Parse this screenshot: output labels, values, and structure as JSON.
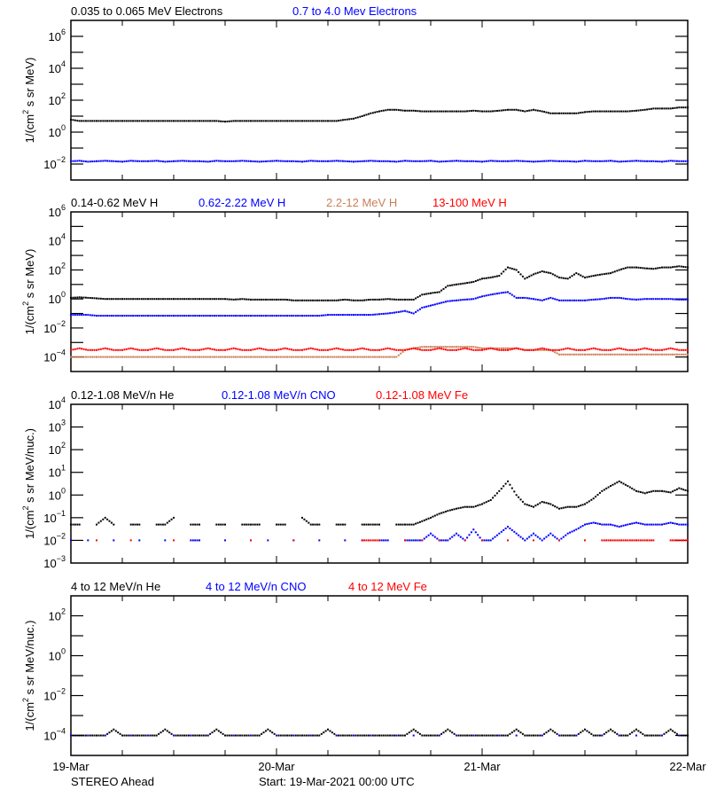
{
  "footer": {
    "spacecraft": "STEREO Ahead",
    "start": "Start: 19-Mar-2021 00:00 UTC"
  },
  "x_axis": {
    "tick_labels": [
      "19-Mar",
      "20-Mar",
      "21-Mar",
      "22-Mar"
    ],
    "range": [
      "2021-03-19 00:00 UTC",
      "2021-03-22 00:00 UTC"
    ],
    "sample_interval": "1 hour",
    "minor_tick_interval": "6 hours"
  },
  "chart_data": [
    {
      "type": "scatter",
      "ylabel": "1/(cm² s sr MeV)",
      "ylabel_parts": [
        "1/(cm",
        "2",
        " s sr MeV)"
      ],
      "yscale": "log",
      "ylim": [
        0.001,
        10000000
      ],
      "ytick_exponents": [
        6,
        4,
        2,
        0,
        -2
      ],
      "series": [
        {
          "name": "0.035 to 0.065 MeV Electrons",
          "color": "#000000",
          "values": [
            6,
            5,
            5,
            5,
            5,
            5,
            5,
            5,
            5,
            5,
            5,
            5,
            5,
            5,
            5,
            5,
            5,
            5,
            4.5,
            5,
            5,
            5,
            5,
            5,
            5,
            5,
            5,
            5,
            5,
            5,
            5,
            5,
            6,
            7,
            10,
            15,
            20,
            25,
            25,
            22,
            22,
            20,
            20,
            20,
            20,
            20,
            20,
            22,
            20,
            20,
            22,
            25,
            25,
            20,
            25,
            20,
            15,
            15,
            15,
            15,
            18,
            20,
            20,
            20,
            20,
            20,
            22,
            25,
            30,
            30,
            30,
            35,
            35
          ]
        },
        {
          "name": "0.7 to 4.0 Mev Electrons",
          "color": "#0000ff",
          "values": [
            0.015,
            0.016,
            0.014,
            0.015,
            0.016,
            0.015,
            0.014,
            0.016,
            0.015,
            0.015,
            0.016,
            0.014,
            0.015,
            0.016,
            0.015,
            0.015,
            0.014,
            0.016,
            0.015,
            0.015,
            0.016,
            0.015,
            0.014,
            0.015,
            0.016,
            0.015,
            0.015,
            0.014,
            0.016,
            0.015,
            0.015,
            0.016,
            0.015,
            0.014,
            0.015,
            0.016,
            0.015,
            0.015,
            0.014,
            0.016,
            0.015,
            0.015,
            0.016,
            0.014,
            0.015,
            0.016,
            0.015,
            0.015,
            0.014,
            0.016,
            0.015,
            0.015,
            0.016,
            0.015,
            0.014,
            0.015,
            0.016,
            0.015,
            0.015,
            0.014,
            0.016,
            0.015,
            0.015,
            0.016,
            0.014,
            0.015,
            0.016,
            0.015,
            0.015,
            0.014,
            0.016,
            0.015,
            0.015
          ]
        }
      ]
    },
    {
      "type": "scatter",
      "ylabel": "1/(cm² s sr MeV)",
      "ylabel_parts": [
        "1/(cm",
        "2",
        " s sr MeV)"
      ],
      "yscale": "log",
      "ylim": [
        1e-05,
        1000000
      ],
      "ytick_exponents": [
        6,
        4,
        2,
        0,
        -2,
        -4
      ],
      "series": [
        {
          "name": "0.14-0.62 MeV H",
          "color": "#000000",
          "values": [
            1.2,
            1.3,
            1.2,
            1.1,
            1,
            1,
            1,
            1,
            1,
            1,
            1,
            1,
            1,
            1,
            1,
            1,
            1,
            1,
            1,
            0.9,
            1,
            0.9,
            0.9,
            0.9,
            0.9,
            0.9,
            0.8,
            0.8,
            0.8,
            0.8,
            0.8,
            0.8,
            0.9,
            0.8,
            0.8,
            0.9,
            0.9,
            1,
            0.9,
            0.9,
            0.9,
            2,
            2.5,
            3,
            8,
            10,
            12,
            15,
            25,
            30,
            40,
            150,
            100,
            25,
            50,
            80,
            60,
            30,
            25,
            60,
            30,
            40,
            50,
            60,
            100,
            150,
            150,
            130,
            120,
            150,
            150,
            180,
            150
          ]
        },
        {
          "name": "0.62-2.22 MeV H",
          "color": "#0000ff",
          "values": [
            0.08,
            0.08,
            0.08,
            0.07,
            0.07,
            0.07,
            0.07,
            0.07,
            0.07,
            0.07,
            0.07,
            0.07,
            0.07,
            0.07,
            0.07,
            0.07,
            0.07,
            0.07,
            0.07,
            0.07,
            0.07,
            0.07,
            0.07,
            0.07,
            0.07,
            0.07,
            0.07,
            0.07,
            0.07,
            0.07,
            0.08,
            0.08,
            0.08,
            0.08,
            0.08,
            0.08,
            0.09,
            0.1,
            0.12,
            0.15,
            0.1,
            0.25,
            0.35,
            0.5,
            0.7,
            0.8,
            0.9,
            1,
            1.5,
            2,
            2.5,
            3,
            1.2,
            1.2,
            1,
            0.8,
            1.2,
            0.8,
            0.8,
            0.8,
            0.8,
            0.9,
            1,
            1.2,
            1.2,
            1,
            0.9,
            1,
            1,
            1,
            1,
            0.9,
            0.9
          ]
        },
        {
          "name": "2.2-12 MeV H",
          "color": "#c8805a",
          "values": [
            0.0001,
            0.0001,
            0.0001,
            0.0001,
            0.0001,
            0.0001,
            0.0001,
            0.0001,
            0.0001,
            0.0001,
            0.0001,
            0.0001,
            0.0001,
            0.0001,
            0.0001,
            0.0001,
            0.0001,
            0.0001,
            0.0001,
            0.0001,
            0.0001,
            0.0001,
            0.0001,
            0.0001,
            0.0001,
            0.0001,
            0.0001,
            0.0001,
            0.0001,
            0.0001,
            0.0001,
            0.0001,
            0.0001,
            0.0001,
            0.0001,
            0.0001,
            0.0001,
            0.0001,
            0.0001,
            0.0003,
            0.0004,
            0.0005,
            0.0005,
            0.0005,
            0.0005,
            0.0005,
            0.0005,
            0.0005,
            0.0004,
            0.0004,
            0.0004,
            0.0004,
            0.0004,
            0.0003,
            0.0003,
            0.0003,
            0.0003,
            0.00015,
            0.00015,
            0.00015,
            0.00015,
            0.00015,
            0.00015,
            0.00015,
            0.00015,
            0.00015,
            0.00015,
            0.00015,
            0.00015,
            0.00015,
            0.00015,
            0.00015,
            0.00015
          ]
        },
        {
          "name": "13-100 MeV H",
          "color": "#ff0000",
          "values": [
            0.0003,
            0.0004,
            0.0003,
            0.0003,
            0.0004,
            0.0003,
            0.0003,
            0.0004,
            0.0003,
            0.0003,
            0.0004,
            0.0003,
            0.0003,
            0.0004,
            0.0003,
            0.0003,
            0.0004,
            0.0003,
            0.0003,
            0.0004,
            0.0003,
            0.0003,
            0.0004,
            0.0003,
            0.0003,
            0.0004,
            0.0003,
            0.0003,
            0.0004,
            0.0003,
            0.0003,
            0.0004,
            0.0003,
            0.0003,
            0.0004,
            0.0003,
            0.0003,
            0.0004,
            0.0003,
            0.0003,
            0.0004,
            0.0003,
            0.0003,
            0.0004,
            0.0003,
            0.0003,
            0.0004,
            0.0003,
            0.0003,
            0.0004,
            0.0003,
            0.0003,
            0.0004,
            0.0003,
            0.0003,
            0.0004,
            0.0003,
            0.0003,
            0.0004,
            0.0003,
            0.0003,
            0.0004,
            0.0003,
            0.0003,
            0.0004,
            0.0003,
            0.0003,
            0.0004,
            0.0003,
            0.0003,
            0.0004,
            0.0003,
            0.0003
          ]
        }
      ]
    },
    {
      "type": "scatter",
      "ylabel": "1/(cm² s sr MeV/nuc.)",
      "ylabel_parts": [
        "1/(cm",
        "2",
        " s sr MeV/nuc.)"
      ],
      "yscale": "log",
      "ylim": [
        0.001,
        10000
      ],
      "ytick_exponents": [
        4,
        3,
        2,
        1,
        0,
        -1,
        -2,
        -3
      ],
      "series": [
        {
          "name": "0.12-1.08 MeV/n He",
          "color": "#000000",
          "values": [
            0.05,
            0.05,
            null,
            0.05,
            0.1,
            0.05,
            null,
            0.05,
            0.05,
            null,
            0.05,
            0.05,
            0.1,
            null,
            0.05,
            0.05,
            null,
            0.05,
            0.05,
            null,
            0.05,
            0.05,
            0.05,
            null,
            0.05,
            0.05,
            null,
            0.1,
            0.05,
            0.05,
            null,
            0.05,
            0.05,
            null,
            0.05,
            0.05,
            0.05,
            null,
            0.05,
            0.05,
            0.05,
            0.07,
            0.1,
            0.15,
            0.2,
            0.25,
            0.3,
            0.3,
            0.4,
            0.6,
            1.5,
            4,
            1,
            0.4,
            0.3,
            0.5,
            0.4,
            0.25,
            0.3,
            0.3,
            0.4,
            0.7,
            1.5,
            2.5,
            4,
            2.5,
            1.5,
            1.2,
            1.5,
            1.5,
            1.3,
            2,
            1.5
          ]
        },
        {
          "name": "0.12-1.08 MeV/n CNO",
          "color": "#0000ff",
          "values": [
            0.01,
            null,
            0.01,
            null,
            null,
            0.01,
            null,
            null,
            0.01,
            null,
            null,
            0.01,
            null,
            null,
            0.01,
            0.01,
            null,
            null,
            0.01,
            null,
            null,
            0.01,
            null,
            0.01,
            null,
            null,
            0.01,
            null,
            null,
            0.01,
            null,
            null,
            0.01,
            null,
            0.01,
            null,
            0.01,
            0.01,
            null,
            0.01,
            0.01,
            0.01,
            0.02,
            0.01,
            0.01,
            0.02,
            0.01,
            0.03,
            0.01,
            0.01,
            0.02,
            0.04,
            0.02,
            0.01,
            0.02,
            0.01,
            0.02,
            0.01,
            0.02,
            0.03,
            0.05,
            0.06,
            0.05,
            0.05,
            0.04,
            0.05,
            0.06,
            0.05,
            0.05,
            0.05,
            0.06,
            0.05,
            0.05
          ]
        },
        {
          "name": "0.12-1.08 MeV Fe",
          "color": "#ff0000",
          "values": [
            null,
            null,
            null,
            0.01,
            null,
            null,
            null,
            0.01,
            null,
            null,
            null,
            null,
            0.01,
            null,
            null,
            null,
            null,
            null,
            null,
            null,
            null,
            0.01,
            null,
            null,
            null,
            null,
            0.01,
            null,
            null,
            null,
            null,
            null,
            null,
            null,
            0.01,
            0.01,
            0.01,
            null,
            null,
            0.01,
            null,
            0.01,
            null,
            0.01,
            null,
            null,
            0.01,
            null,
            0.01,
            null,
            null,
            0.01,
            null,
            null,
            0.01,
            null,
            null,
            0.01,
            null,
            null,
            0.01,
            null,
            0.01,
            0.01,
            0.01,
            0.01,
            0.01,
            0.01,
            0.01,
            null,
            0.01,
            0.01,
            0.01
          ]
        }
      ]
    },
    {
      "type": "scatter",
      "ylabel": "1/(cm² s sr MeV/nuc.)",
      "ylabel_parts": [
        "1/(cm",
        "2",
        " s sr MeV/nuc.)"
      ],
      "yscale": "log",
      "ylim": [
        1e-05,
        1000
      ],
      "ytick_exponents": [
        2,
        0,
        -2,
        -4
      ],
      "series": [
        {
          "name": "4 to 12 MeV/n He",
          "color": "#000000",
          "values": [
            0.0001,
            0.0001,
            0.0001,
            0.0001,
            0.0001,
            0.0002,
            0.0001,
            0.0001,
            0.0001,
            0.0001,
            0.0001,
            0.0002,
            0.0001,
            0.0001,
            0.0001,
            0.0001,
            0.0001,
            0.0002,
            0.0001,
            0.0001,
            0.0001,
            0.0001,
            0.0001,
            0.0002,
            0.0001,
            0.0001,
            0.0001,
            0.0001,
            0.0001,
            0.0001,
            0.0002,
            0.0001,
            0.0001,
            0.0001,
            0.0001,
            0.0001,
            0.0001,
            0.0001,
            0.0001,
            0.0001,
            0.0002,
            0.0001,
            0.0001,
            0.0001,
            0.0002,
            0.0001,
            0.0001,
            0.0001,
            0.0001,
            0.0001,
            0.0001,
            0.0001,
            0.0002,
            0.0001,
            0.0001,
            0.0001,
            0.0002,
            0.0001,
            0.0001,
            0.0001,
            0.0002,
            0.0001,
            0.0001,
            0.0002,
            0.0001,
            0.0001,
            0.0002,
            0.0001,
            0.0001,
            0.0001,
            0.0002,
            0.0001,
            0.0001
          ]
        },
        {
          "name": "4 to 12 MeV/n CNO",
          "color": "#0000ff",
          "values": [
            0.0001,
            null,
            0.0001,
            null,
            0.0001,
            null,
            null,
            0.0001,
            null,
            0.0001,
            null,
            null,
            0.0001,
            null,
            0.0001,
            null,
            0.0001,
            null,
            null,
            0.0001,
            null,
            0.0001,
            null,
            null,
            0.0001,
            null,
            0.0001,
            null,
            0.0001,
            null,
            null,
            0.0001,
            null,
            0.0001,
            null,
            0.0001,
            null,
            null,
            0.0001,
            null,
            0.0001,
            null,
            null,
            0.0001,
            null,
            0.0001,
            null,
            0.0001,
            null,
            null,
            0.0001,
            null,
            0.0001,
            null,
            null,
            0.0001,
            null,
            0.0001,
            null,
            0.0001,
            null,
            null,
            0.0001,
            null,
            0.0001,
            null,
            0.0001,
            null,
            null,
            0.0001,
            null,
            0.0001,
            null
          ]
        },
        {
          "name": "4 to 12 MeV Fe",
          "color": "#ff0000",
          "values": []
        }
      ]
    }
  ]
}
